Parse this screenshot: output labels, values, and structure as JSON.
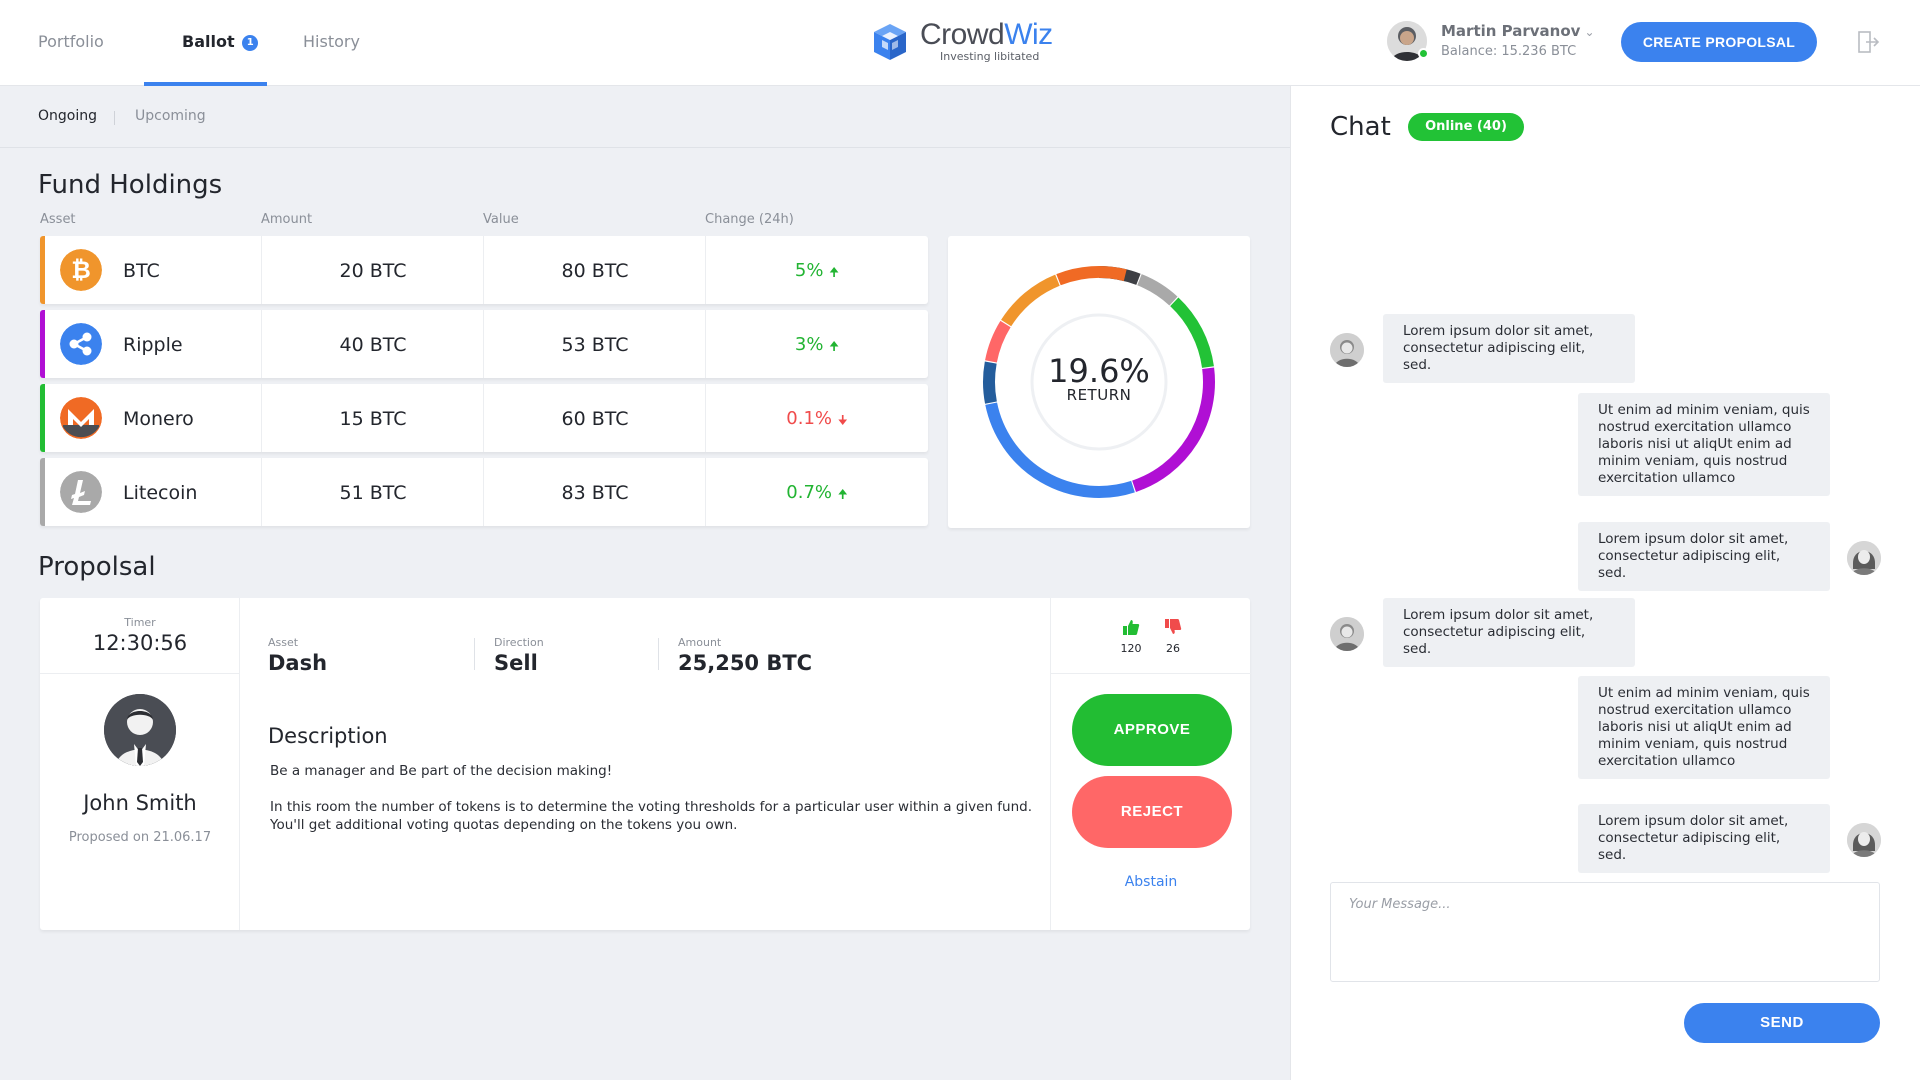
{
  "nav": {
    "tabs": [
      {
        "label": "Portfolio"
      },
      {
        "label": "Ballot",
        "badge": "1"
      },
      {
        "label": "History"
      }
    ],
    "active": "Ballot"
  },
  "logo": {
    "name_part1": "Crowd",
    "name_part2": "Wiz",
    "tagline": "Investing libitated"
  },
  "user": {
    "name": "Martin Parvanov",
    "balance": "Balance: 15.236 BTC",
    "status_color": "#22c236"
  },
  "header": {
    "create_label": "CREATE PROPOLSAL",
    "logout_icon": "logout-icon"
  },
  "subtabs": {
    "items": [
      "Ongoing",
      "Upcoming"
    ],
    "active": "Ongoing"
  },
  "holdings": {
    "title": "Fund Holdings",
    "columns": [
      "Asset",
      "Amount",
      "Value",
      "Change (24h)"
    ],
    "rows": [
      {
        "asset": "BTC",
        "amount": "20 BTC",
        "value": "80 BTC",
        "change": "5%",
        "direction": "up",
        "color": "#f0952c",
        "icon": "bitcoin-icon"
      },
      {
        "asset": "Ripple",
        "amount": "40 BTC",
        "value": "53 BTC",
        "change": "3%",
        "direction": "up",
        "color": "#b00fd4",
        "icon": "ripple-icon"
      },
      {
        "asset": "Monero",
        "amount": "15 BTC",
        "value": "60 BTC",
        "change": "0.1%",
        "direction": "down",
        "color": "#22bd33",
        "icon": "monero-icon"
      },
      {
        "asset": "Litecoin",
        "amount": "51 BTC",
        "value": "83 BTC",
        "change": "0.7%",
        "direction": "up",
        "color": "#a9a9a9",
        "icon": "litecoin-icon"
      }
    ]
  },
  "donut": {
    "value": "19.6%",
    "label": "RETURN",
    "segments": [
      {
        "fraction": 0.06,
        "color": "#3e3f44"
      },
      {
        "fraction": 0.06,
        "color": "#a9a9a9"
      },
      {
        "fraction": 0.11,
        "color": "#22c236"
      },
      {
        "fraction": 0.22,
        "color": "#b00fd4"
      },
      {
        "fraction": 0.27,
        "color": "#3b82ee"
      },
      {
        "fraction": 0.06,
        "color": "#245d9c"
      },
      {
        "fraction": 0.06,
        "color": "#ff6767"
      },
      {
        "fraction": 0.1,
        "color": "#f0952c"
      },
      {
        "fraction": 0.1,
        "color": "#f06a24"
      }
    ]
  },
  "proposal": {
    "title": "Propolsal",
    "timer_label": "Timer",
    "timer": "12:30:56",
    "proposer": "John Smith",
    "proposed_on": "Proposed on 21.06.17",
    "asset_label": "Asset",
    "asset": "Dash",
    "direction_label": "Direction",
    "direction": "Sell",
    "amount_label": "Amount",
    "amount": "25,250 BTC",
    "description_title": "Description",
    "description_1": "Be a manager and Be part of the decision making!",
    "description_2": "In this room the number of tokens is to determine the voting thresholds for a particular user within a given fund. You'll get additional voting quotas depending on the tokens you own.",
    "upvotes": "120",
    "downvotes": "26",
    "approve_label": "APPROVE",
    "reject_label": "REJECT",
    "abstain_label": "Abstain"
  },
  "chat": {
    "title": "Chat",
    "online": "Online (40)",
    "messages": [
      {
        "side": "left",
        "text": "Lorem ipsum dolor sit amet, consectetur adipiscing elit, sed."
      },
      {
        "side": "right",
        "text": "Ut enim ad minim veniam, quis nostrud exercitation ullamco laboris nisi ut aliqUt enim ad minim veniam, quis nostrud exercitation ullamco"
      },
      {
        "side": "right",
        "text": "Lorem ipsum dolor sit amet, consectetur adipiscing elit, sed."
      },
      {
        "side": "left",
        "text": "Lorem ipsum dolor sit amet, consectetur adipiscing elit, sed."
      },
      {
        "side": "right",
        "text": "Ut enim ad minim veniam, quis nostrud exercitation ullamco laboris nisi ut aliqUt enim ad minim veniam, quis nostrud exercitation ullamco"
      },
      {
        "side": "right",
        "text": "Lorem ipsum dolor sit amet, consectetur adipiscing elit, sed."
      }
    ],
    "input_placeholder": "Your Message...",
    "send_label": "SEND"
  }
}
